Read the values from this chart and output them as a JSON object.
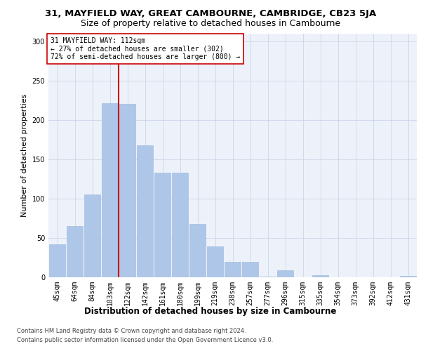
{
  "title1": "31, MAYFIELD WAY, GREAT CAMBOURNE, CAMBRIDGE, CB23 5JA",
  "title2": "Size of property relative to detached houses in Cambourne",
  "xlabel": "Distribution of detached houses by size in Cambourne",
  "ylabel": "Number of detached properties",
  "bar_labels": [
    "45sqm",
    "64sqm",
    "84sqm",
    "103sqm",
    "122sqm",
    "142sqm",
    "161sqm",
    "180sqm",
    "199sqm",
    "219sqm",
    "238sqm",
    "257sqm",
    "277sqm",
    "296sqm",
    "315sqm",
    "335sqm",
    "354sqm",
    "373sqm",
    "392sqm",
    "412sqm",
    "431sqm"
  ],
  "bar_values": [
    42,
    65,
    105,
    221,
    220,
    168,
    133,
    133,
    68,
    39,
    20,
    20,
    1,
    9,
    0,
    3,
    0,
    0,
    0,
    0,
    2
  ],
  "bar_color": "#aec6e8",
  "bar_edge_color": "#9ab8dc",
  "grid_color": "#ccd6e8",
  "background_color": "#edf2fa",
  "vline_x_idx": 3,
  "vline_color": "#cc0000",
  "annotation_text": "31 MAYFIELD WAY: 112sqm\n← 27% of detached houses are smaller (302)\n72% of semi-detached houses are larger (800) →",
  "annotation_box_facecolor": "#ffffff",
  "annotation_box_edgecolor": "#cc0000",
  "ylim": [
    0,
    310
  ],
  "yticks": [
    0,
    50,
    100,
    150,
    200,
    250,
    300
  ],
  "footer1": "Contains HM Land Registry data © Crown copyright and database right 2024.",
  "footer2": "Contains public sector information licensed under the Open Government Licence v3.0.",
  "title1_fontsize": 9.5,
  "title2_fontsize": 9,
  "tick_fontsize": 7,
  "xlabel_fontsize": 8.5,
  "ylabel_fontsize": 8,
  "annot_fontsize": 7,
  "footer_fontsize": 6
}
